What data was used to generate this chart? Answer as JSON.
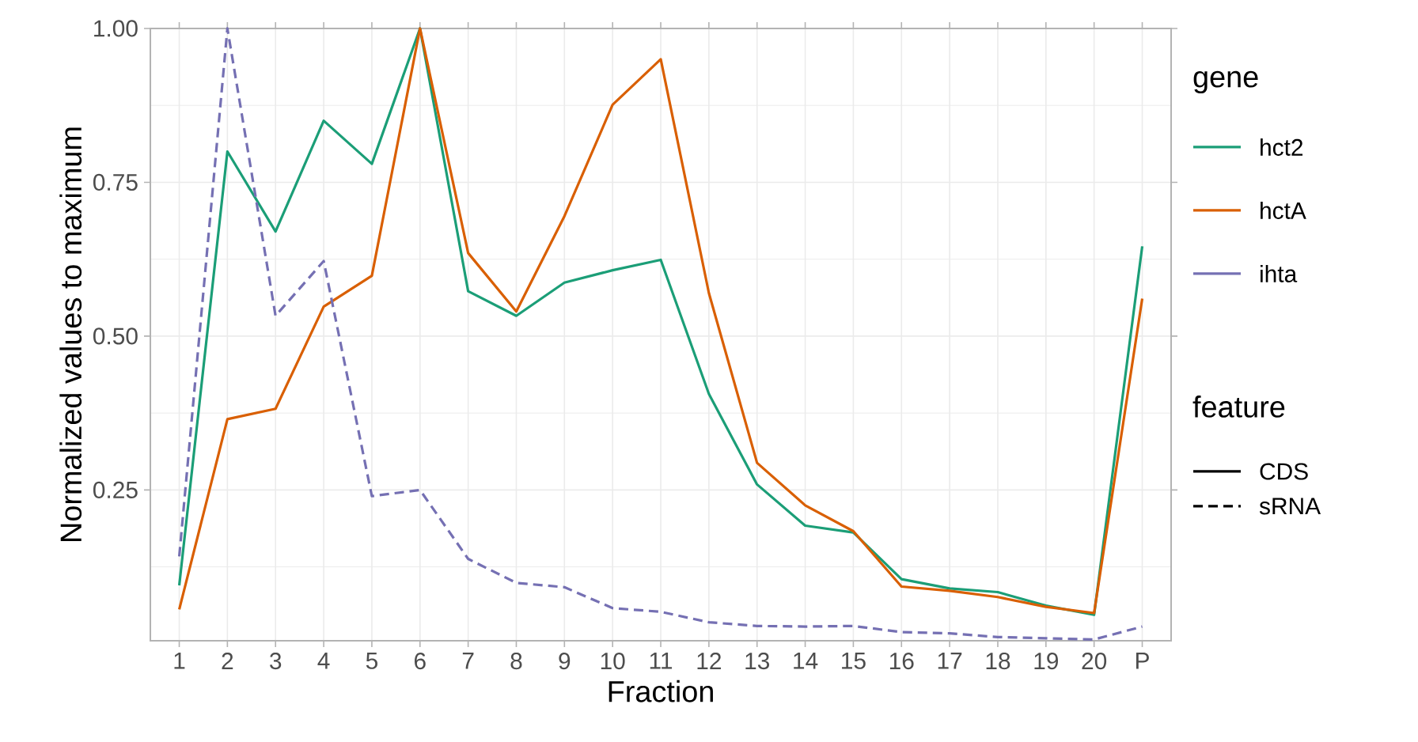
{
  "chart_data": {
    "type": "line",
    "xlabel": "Fraction",
    "ylabel": "Normalized values to maximum",
    "legend_title": "gene",
    "annotations": [
      "feature"
    ],
    "categories": [
      "1",
      "2",
      "3",
      "4",
      "5",
      "6",
      "7",
      "8",
      "9",
      "10",
      "11",
      "12",
      "13",
      "14",
      "15",
      "16",
      "17",
      "18",
      "19",
      "20",
      "P"
    ],
    "ylim": [
      0.005,
      1.0
    ],
    "yticks": [
      0.25,
      {
        "value": 0.5,
        "label": "0.50"
      },
      0.75,
      {
        "value": 1.0,
        "label": "1.00"
      }
    ],
    "grid": true,
    "legend": "right",
    "series": [
      {
        "name": "hct2",
        "color": "#1b9e77",
        "line_style": "solid",
        "values": [
          0.095,
          0.8,
          0.67,
          0.85,
          0.78,
          1.0,
          0.573,
          0.533,
          0.587,
          0.607,
          0.624,
          0.406,
          0.259,
          0.192,
          0.181,
          0.105,
          0.09,
          0.084,
          0.062,
          0.047,
          0.646
        ]
      },
      {
        "name": "hctA",
        "color": "#d95f02",
        "line_style": "solid",
        "values": [
          0.056,
          0.365,
          0.382,
          0.548,
          0.598,
          1.0,
          0.635,
          0.54,
          0.695,
          0.876,
          0.95,
          0.57,
          0.294,
          0.225,
          0.183,
          0.093,
          0.086,
          0.076,
          0.06,
          0.05,
          0.561
        ]
      },
      {
        "name": "ihta",
        "color": "#7570b3",
        "line_style": "dashed",
        "values": [
          0.142,
          1.0,
          0.533,
          0.622,
          0.24,
          0.25,
          0.138,
          0.099,
          0.092,
          0.058,
          0.052,
          0.035,
          0.029,
          0.028,
          0.029,
          0.019,
          0.017,
          0.011,
          0.009,
          0.007,
          0.028
        ]
      },
      {
        "name": "CDS",
        "color": "#000000",
        "line_style": "solid",
        "values": [
          null,
          null,
          null,
          null,
          null,
          null,
          null,
          null,
          null,
          null,
          null,
          null,
          null,
          null,
          null,
          null,
          null,
          null,
          null,
          null,
          null
        ]
      },
      {
        "name": "sRNA",
        "color": "#000000",
        "line_style": "dashed",
        "values": [
          null,
          null,
          null,
          null,
          null,
          null,
          null,
          null,
          null,
          null,
          null,
          null,
          null,
          null,
          null,
          null,
          null,
          null,
          null,
          null,
          null
        ]
      }
    ]
  }
}
